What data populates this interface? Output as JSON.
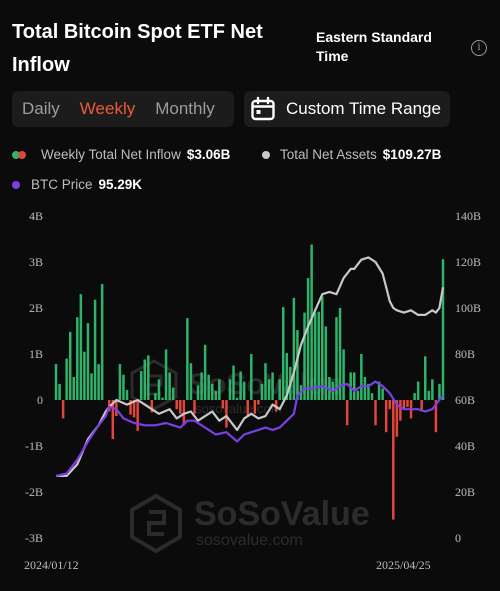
{
  "header": {
    "title": "Total Bitcoin Spot ETF Net Inflow",
    "timezone": "Eastern Standard Time",
    "info_icon": "info-icon"
  },
  "period_tabs": [
    {
      "label": "Daily",
      "active": false
    },
    {
      "label": "Weekly",
      "active": true
    },
    {
      "label": "Monthly",
      "active": false
    }
  ],
  "custom_range": {
    "label": "Custom Time Range",
    "icon": "calendar-icon"
  },
  "legend": {
    "inflow": {
      "label": "Weekly Total Net Inflow",
      "value": "$3.06B"
    },
    "assets": {
      "label": "Total Net Assets",
      "value": "$109.27B"
    },
    "price": {
      "label": "BTC Price",
      "value": "95.29K"
    }
  },
  "colors": {
    "positive": "#2fb36a",
    "negative": "#e2453c",
    "assets_line": "#c8c8c8",
    "price_line": "#7b3fe4",
    "accent": "#ee5a3a"
  },
  "watermark": {
    "brand": "SoSoValue",
    "url": "sosovalue.com"
  },
  "chart_data": {
    "type": "bar",
    "x_start": "2024/01/12",
    "x_end": "2025/04/25",
    "grid": false,
    "y_left": {
      "ticks": [
        "4B",
        "3B",
        "2B",
        "1B",
        "0",
        "-1B",
        "-2B",
        "-3B"
      ],
      "ylim": [
        -3,
        4
      ]
    },
    "y_right": {
      "ticks": [
        "140B",
        "120B",
        "100B",
        "80B",
        "60B",
        "40B",
        "20B",
        "0"
      ],
      "ylim": [
        0,
        140
      ]
    },
    "x_ticks": [
      "2024/01/12",
      "2025/04/25"
    ],
    "series": [
      {
        "name": "Weekly Total Net Inflow",
        "axis": "left",
        "unit": "B USD",
        "values": [
          0.78,
          0.35,
          -0.4,
          0.9,
          1.48,
          0.5,
          1.8,
          2.3,
          1.05,
          1.67,
          0.58,
          2.18,
          0.78,
          2.52,
          0,
          -0.25,
          -0.85,
          -0.35,
          0.78,
          0.55,
          0.22,
          -0.32,
          -0.38,
          -0.67,
          0.63,
          0.88,
          0.97,
          -0.27,
          0.15,
          0.45,
          0.05,
          1.1,
          0.6,
          0.27,
          -0.2,
          -0.3,
          -0.55,
          1.78,
          0.8,
          -0.3,
          0.32,
          0.6,
          1.2,
          0.55,
          0.35,
          0.2,
          0.45,
          -0.18,
          -0.6,
          0.45,
          0.75,
          0.05,
          0.62,
          0.4,
          -0.35,
          1.0,
          -0.3,
          -0.1,
          0.35,
          0.8,
          0.45,
          0.6,
          -0.25,
          0.45,
          2.02,
          1.02,
          0.72,
          2.22,
          1.52,
          0.32,
          1.9,
          2.65,
          3.38,
          1.9,
          1.92,
          2.25,
          1.6,
          0.5,
          0.4,
          1.8,
          2.0,
          1.1,
          -0.55,
          0.6,
          0.6,
          0.2,
          1.0,
          0.5,
          0.35,
          0.15,
          -0.55,
          0.4,
          0.25,
          -0.7,
          -0.2,
          -2.6,
          -0.8,
          -0.45,
          -0.2,
          -0.15,
          -0.4,
          0.15,
          0.4,
          -0.25,
          0.95,
          0.2,
          0.45,
          -0.7,
          0.35,
          3.06
        ]
      },
      {
        "name": "Total Net Assets",
        "axis": "right",
        "unit": "B USD",
        "points": [
          [
            0,
            27
          ],
          [
            3,
            27
          ],
          [
            6,
            32
          ],
          [
            9,
            43
          ],
          [
            12,
            49
          ],
          [
            14,
            55
          ],
          [
            15,
            57
          ],
          [
            17,
            60
          ],
          [
            20,
            58
          ],
          [
            23,
            60
          ],
          [
            26,
            57
          ],
          [
            29,
            54
          ],
          [
            32,
            56
          ],
          [
            34,
            52
          ],
          [
            36,
            54
          ],
          [
            38,
            55
          ],
          [
            40,
            51
          ],
          [
            42,
            53
          ],
          [
            44,
            55
          ],
          [
            46,
            51
          ],
          [
            48,
            53
          ],
          [
            51,
            47
          ],
          [
            53,
            52
          ],
          [
            55,
            54
          ],
          [
            57,
            52
          ],
          [
            59,
            53
          ],
          [
            61,
            58
          ],
          [
            63,
            56
          ],
          [
            65,
            62
          ],
          [
            67,
            72
          ],
          [
            69,
            84
          ],
          [
            71,
            92
          ],
          [
            73,
            99
          ],
          [
            75,
            106
          ],
          [
            77,
            107
          ],
          [
            79,
            106
          ],
          [
            81,
            113
          ],
          [
            83,
            117
          ],
          [
            84,
            117
          ],
          [
            86,
            121
          ],
          [
            88,
            122
          ],
          [
            90,
            120
          ],
          [
            92,
            115
          ],
          [
            93,
            109
          ],
          [
            94,
            103
          ],
          [
            95,
            100
          ],
          [
            96,
            99
          ],
          [
            98,
            98
          ],
          [
            100,
            99
          ],
          [
            102,
            97
          ],
          [
            104,
            97
          ],
          [
            106,
            99
          ],
          [
            107,
            98
          ],
          [
            108,
            100
          ],
          [
            109,
            109
          ]
        ]
      },
      {
        "name": "BTC Price",
        "axis": "right",
        "unit": "K USD",
        "points": [
          [
            0,
            27
          ],
          [
            3,
            28
          ],
          [
            6,
            34
          ],
          [
            9,
            42
          ],
          [
            12,
            49
          ],
          [
            14,
            53
          ],
          [
            15,
            57
          ],
          [
            17,
            56
          ],
          [
            19,
            52
          ],
          [
            22,
            50
          ],
          [
            25,
            49
          ],
          [
            28,
            49
          ],
          [
            31,
            50
          ],
          [
            33,
            49
          ],
          [
            35,
            48
          ],
          [
            37,
            51
          ],
          [
            39,
            51
          ],
          [
            41,
            49
          ],
          [
            43,
            47
          ],
          [
            45,
            45
          ],
          [
            48,
            46
          ],
          [
            51,
            42
          ],
          [
            53,
            45
          ],
          [
            55,
            46
          ],
          [
            57,
            47
          ],
          [
            59,
            48
          ],
          [
            61,
            47
          ],
          [
            63,
            48
          ],
          [
            65,
            51
          ],
          [
            67,
            54
          ],
          [
            68,
            62
          ],
          [
            70,
            65
          ],
          [
            72,
            65
          ],
          [
            75,
            66
          ],
          [
            78,
            64
          ],
          [
            80,
            66
          ],
          [
            82,
            67
          ],
          [
            84,
            64
          ],
          [
            86,
            66
          ],
          [
            88,
            66
          ],
          [
            90,
            68
          ],
          [
            92,
            66
          ],
          [
            94,
            63
          ],
          [
            96,
            58
          ],
          [
            98,
            56
          ],
          [
            100,
            56
          ],
          [
            102,
            56
          ],
          [
            104,
            55
          ],
          [
            106,
            56
          ],
          [
            108,
            60
          ],
          [
            109,
            62
          ]
        ]
      }
    ]
  }
}
